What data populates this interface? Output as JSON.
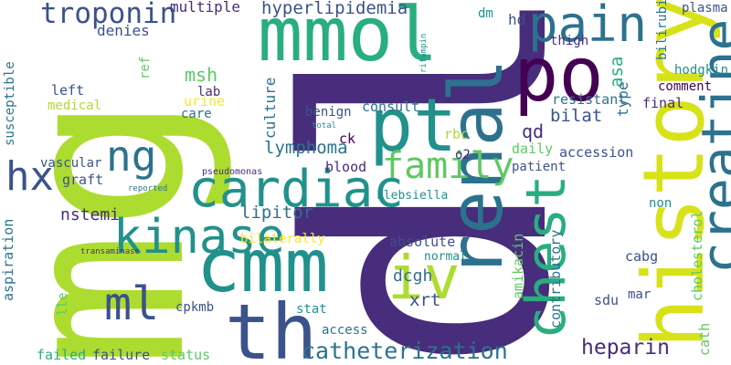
{
  "word_cloud": {
    "background": "#ffffff",
    "palette": [
      "#440154",
      "#472d7b",
      "#3b528b",
      "#2c728e",
      "#21918c",
      "#28ae80",
      "#5ec962",
      "#addc30",
      "#fde725"
    ],
    "words": [
      {
        "text": "mg",
        "color": "#addc30"
      },
      {
        "text": "dl",
        "color": "#472d7b"
      },
      {
        "text": "mmol",
        "color": "#28ae80"
      },
      {
        "text": "history",
        "color": "#d8e219"
      },
      {
        "text": "renal",
        "color": "#2c728e"
      },
      {
        "text": "pt",
        "color": "#21918c"
      },
      {
        "text": "cmm",
        "color": "#21918c"
      },
      {
        "text": "th",
        "color": "#3b528b"
      },
      {
        "text": "po",
        "color": "#440154"
      },
      {
        "text": "creatine",
        "color": "#2c728e"
      },
      {
        "text": "chest",
        "color": "#28ae80"
      },
      {
        "text": "pain",
        "color": "#2c728e"
      },
      {
        "text": "iv",
        "color": "#addc30"
      },
      {
        "text": "cardiac",
        "color": "#21918c"
      },
      {
        "text": "family",
        "color": "#5ec962"
      },
      {
        "text": "kinase",
        "color": "#21918c"
      },
      {
        "text": "ng",
        "color": "#2c728e"
      },
      {
        "text": "ml",
        "color": "#3b528b"
      },
      {
        "text": "hx",
        "color": "#3b528b"
      },
      {
        "text": "troponin",
        "color": "#3b528b"
      },
      {
        "text": "catheterization",
        "color": "#2c728e"
      },
      {
        "text": "heparin",
        "color": "#472d7b"
      },
      {
        "text": "hyperlipidemia",
        "color": "#3b528b"
      },
      {
        "text": "lymphoma",
        "color": "#2c728e"
      },
      {
        "text": "lipitor",
        "color": "#2c728e"
      },
      {
        "text": "multiple",
        "color": "#472d7b"
      },
      {
        "text": "denies",
        "color": "#3b528b"
      },
      {
        "text": "msh",
        "color": "#5ec962"
      },
      {
        "text": "lab",
        "color": "#472d7b"
      },
      {
        "text": "urine",
        "color": "#fde725"
      },
      {
        "text": "care",
        "color": "#2c728e"
      },
      {
        "text": "culture",
        "color": "#2c728e"
      },
      {
        "text": "left",
        "color": "#3b528b"
      },
      {
        "text": "medical",
        "color": "#addc30"
      },
      {
        "text": "ref",
        "color": "#5ec962"
      },
      {
        "text": "susceptible",
        "color": "#2c728e"
      },
      {
        "text": "vascular",
        "color": "#3b528b"
      },
      {
        "text": "graft",
        "color": "#3b528b"
      },
      {
        "text": "nstemi",
        "color": "#472d7b"
      },
      {
        "text": "bilaterally",
        "color": "#fde725"
      },
      {
        "text": "aspiration",
        "color": "#2c728e"
      },
      {
        "text": "lle",
        "color": "#5ec962"
      },
      {
        "text": "cpkmb",
        "color": "#3b528b"
      },
      {
        "text": "stat",
        "color": "#21918c"
      },
      {
        "text": "access",
        "color": "#2c728e"
      },
      {
        "text": "failed",
        "color": "#28ae80"
      },
      {
        "text": "failure",
        "color": "#3b528b"
      },
      {
        "text": "status",
        "color": "#5ec962"
      },
      {
        "text": "benign",
        "color": "#3b528b"
      },
      {
        "text": "consult",
        "color": "#2c728e"
      },
      {
        "text": "ck",
        "color": "#440154"
      },
      {
        "text": "blood",
        "color": "#472d7b"
      },
      {
        "text": "rbc",
        "color": "#addc30"
      },
      {
        "text": "o2",
        "color": "#472d7b"
      },
      {
        "text": "qd",
        "color": "#472d7b"
      },
      {
        "text": "daily",
        "color": "#5ec962"
      },
      {
        "text": "patient",
        "color": "#3b528b"
      },
      {
        "text": "accession",
        "color": "#3b528b"
      },
      {
        "text": "bilat",
        "color": "#3b528b"
      },
      {
        "text": "resistant",
        "color": "#2c728e"
      },
      {
        "text": "thigh",
        "color": "#472d7b"
      },
      {
        "text": "asa",
        "color": "#28ae80"
      },
      {
        "text": "type",
        "color": "#2c728e"
      },
      {
        "text": "final",
        "color": "#472d7b"
      },
      {
        "text": "comment",
        "color": "#440154"
      },
      {
        "text": "hodgkin",
        "color": "#21918c"
      },
      {
        "text": "plasma",
        "color": "#3b528b"
      },
      {
        "text": "bilirubin",
        "color": "#2c728e"
      },
      {
        "text": "hd",
        "color": "#3b528b"
      },
      {
        "text": "dm",
        "color": "#21918c"
      },
      {
        "text": "rifampin",
        "color": "#21918c"
      },
      {
        "text": "klebsiella",
        "color": "#21918c"
      },
      {
        "text": "pseudomonas",
        "color": "#472d7b"
      },
      {
        "text": "reported",
        "color": "#2c728e"
      },
      {
        "text": "total",
        "color": "#21918c"
      },
      {
        "text": "transaminase",
        "color": "#472d7b"
      },
      {
        "text": "absolute",
        "color": "#3b528b"
      },
      {
        "text": "normal",
        "color": "#21918c"
      },
      {
        "text": "dcgh",
        "color": "#2c728e"
      },
      {
        "text": "xrt",
        "color": "#3b528b"
      },
      {
        "text": "amikacin",
        "color": "#5ec962"
      },
      {
        "text": "contributory",
        "color": "#2c728e"
      },
      {
        "text": "sdu",
        "color": "#3b528b"
      },
      {
        "text": "cabg",
        "color": "#3b528b"
      },
      {
        "text": "non",
        "color": "#21918c"
      },
      {
        "text": "mar",
        "color": "#3b528b"
      },
      {
        "text": "cath",
        "color": "#5ec962"
      },
      {
        "text": "cholesterol",
        "color": "#5ec962"
      }
    ]
  }
}
